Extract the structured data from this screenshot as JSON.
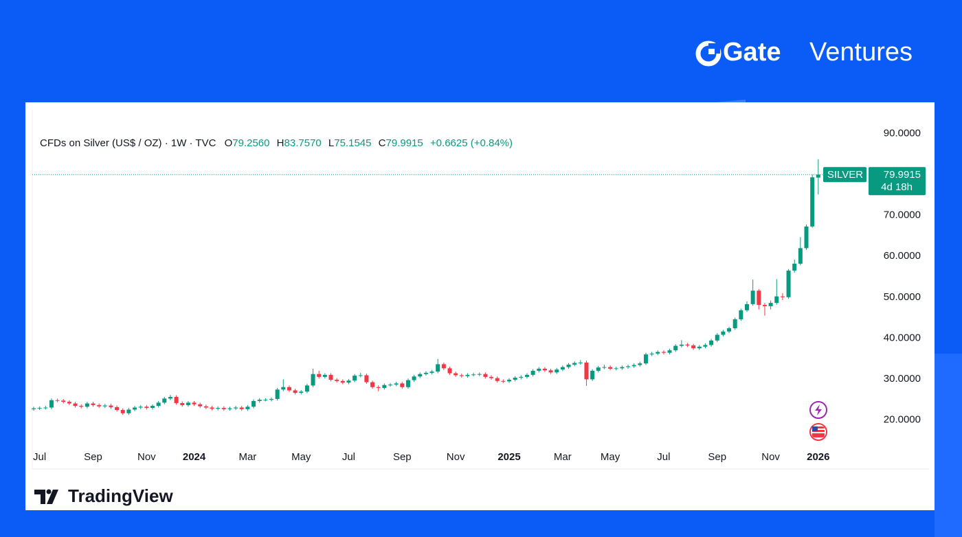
{
  "branding": {
    "logo_bold": "Gate",
    "logo_light": "Ventures",
    "footer": "TradingView"
  },
  "chart_data": {
    "type": "candlestick",
    "header": {
      "symbol": "CFDs on Silver (US$ / OZ) · 1W · TVC",
      "o_key": "O",
      "o": "79.2560",
      "h_key": "H",
      "h": "83.7570",
      "l_key": "L",
      "l": "75.1545",
      "c_key": "C",
      "c": "79.9915",
      "change": "+0.6625 (+0.84%)"
    },
    "symbol_label": "SILVER",
    "countdown": "4d 18h",
    "up_color": "#089981",
    "down_color": "#f23645",
    "categories": [
      null,
      "Jul",
      null,
      null,
      null,
      null,
      null,
      null,
      null,
      null,
      "Sep",
      null,
      null,
      null,
      null,
      null,
      null,
      null,
      null,
      "Nov",
      null,
      null,
      null,
      null,
      null,
      null,
      null,
      "2024",
      null,
      null,
      null,
      null,
      null,
      null,
      null,
      null,
      "Mar",
      null,
      null,
      null,
      null,
      null,
      null,
      null,
      null,
      "May",
      null,
      null,
      null,
      null,
      null,
      null,
      null,
      "Jul",
      null,
      null,
      null,
      null,
      null,
      null,
      null,
      null,
      "Sep",
      null,
      null,
      null,
      null,
      null,
      null,
      null,
      null,
      "Nov",
      null,
      null,
      null,
      null,
      null,
      null,
      null,
      null,
      "2025",
      null,
      null,
      null,
      null,
      null,
      null,
      null,
      null,
      "Mar",
      null,
      null,
      null,
      null,
      null,
      null,
      null,
      "May",
      null,
      null,
      null,
      null,
      null,
      null,
      null,
      null,
      "Jul",
      null,
      null,
      null,
      null,
      null,
      null,
      null,
      null,
      "Sep",
      null,
      null,
      null,
      null,
      null,
      null,
      null,
      null,
      "Nov",
      null,
      null,
      null,
      null,
      null,
      null,
      null,
      "2026"
    ],
    "open": [
      22.6,
      22.8,
      22.9,
      23.0,
      24.8,
      24.7,
      24.4,
      24.0,
      23.4,
      23.2,
      24.0,
      23.6,
      23.3,
      23.5,
      23.1,
      22.4,
      21.6,
      22.5,
      23.0,
      23.2,
      22.9,
      23.4,
      24.2,
      25.2,
      25.6,
      24.1,
      23.6,
      24.2,
      23.8,
      23.3,
      23.0,
      22.7,
      22.9,
      22.6,
      22.8,
      23.0,
      22.6,
      23.2,
      24.6,
      24.9,
      24.9,
      25.1,
      27.4,
      28.0,
      27.2,
      26.6,
      26.9,
      28.4,
      31.2,
      30.5,
      31.0,
      29.8,
      29.5,
      29.1,
      29.6,
      30.8,
      30.9,
      29.2,
      28.0,
      27.8,
      28.5,
      28.6,
      28.9,
      28.0,
      29.7,
      30.6,
      31.2,
      31.5,
      31.8,
      33.6,
      32.6,
      31.4,
      30.9,
      30.7,
      31.0,
      31.1,
      31.2,
      30.5,
      30.2,
      29.5,
      29.4,
      29.8,
      30.3,
      30.5,
      31.0,
      32.0,
      32.5,
      32.1,
      31.6,
      32.3,
      32.9,
      33.5,
      33.9,
      34.0,
      29.9,
      32.0,
      32.8,
      32.9,
      32.5,
      32.6,
      32.9,
      33.1,
      33.4,
      33.8,
      36.0,
      36.2,
      36.6,
      36.4,
      37.0,
      38.1,
      38.4,
      38.2,
      37.5,
      37.9,
      38.3,
      39.4,
      40.8,
      41.6,
      42.4,
      44.6,
      46.8,
      48.3,
      51.6,
      48.1,
      47.8,
      48.6,
      50.2,
      50.0,
      56.5,
      58.2,
      62.0,
      67.3,
      79.256
    ],
    "high": [
      23.2,
      23.3,
      23.4,
      25.2,
      25.2,
      25.1,
      24.8,
      24.4,
      23.8,
      24.4,
      24.4,
      24.0,
      23.9,
      23.9,
      23.5,
      22.8,
      22.9,
      23.4,
      23.6,
      23.6,
      23.8,
      24.6,
      25.6,
      26.1,
      26.0,
      24.5,
      24.6,
      24.6,
      24.2,
      23.7,
      23.4,
      23.3,
      23.3,
      23.2,
      23.4,
      23.4,
      23.6,
      25.0,
      25.3,
      25.3,
      25.5,
      27.8,
      29.9,
      28.4,
      27.6,
      27.3,
      28.8,
      32.5,
      32.0,
      31.4,
      31.4,
      30.2,
      29.9,
      30.0,
      31.2,
      31.5,
      31.3,
      29.6,
      28.4,
      28.9,
      29.0,
      29.3,
      29.3,
      30.1,
      31.0,
      31.6,
      31.9,
      32.2,
      34.9,
      34.0,
      33.0,
      31.8,
      31.3,
      31.4,
      31.5,
      31.6,
      31.6,
      30.9,
      30.6,
      29.9,
      30.2,
      30.7,
      30.9,
      31.4,
      32.4,
      32.9,
      32.9,
      32.5,
      32.7,
      33.3,
      33.9,
      34.3,
      34.6,
      34.5,
      32.4,
      33.2,
      33.5,
      33.3,
      33.0,
      33.3,
      33.5,
      33.8,
      34.2,
      36.4,
      36.6,
      37.0,
      37.0,
      37.4,
      38.5,
      39.5,
      38.8,
      38.6,
      38.3,
      38.7,
      39.8,
      41.2,
      42.0,
      42.8,
      45.0,
      47.2,
      49.0,
      54.3,
      52.0,
      48.6,
      49.2,
      54.4,
      51.0,
      56.9,
      59.2,
      64.7,
      67.8,
      80.0,
      83.757
    ],
    "low": [
      22.2,
      22.4,
      22.5,
      22.6,
      24.3,
      24.0,
      23.6,
      23.0,
      22.8,
      22.8,
      23.2,
      22.9,
      22.9,
      22.7,
      22.0,
      21.2,
      21.2,
      22.1,
      22.6,
      22.5,
      22.5,
      23.0,
      23.8,
      24.8,
      23.7,
      23.2,
      23.2,
      23.4,
      22.9,
      22.6,
      22.3,
      22.3,
      22.2,
      22.2,
      22.4,
      22.2,
      22.2,
      22.8,
      24.2,
      24.5,
      24.5,
      24.7,
      27.0,
      26.8,
      26.2,
      26.2,
      26.5,
      28.0,
      30.1,
      30.1,
      29.4,
      29.1,
      28.7,
      28.7,
      29.2,
      30.4,
      28.8,
      27.6,
      27.0,
      27.4,
      28.1,
      28.2,
      27.6,
      27.6,
      29.3,
      30.2,
      30.8,
      31.1,
      31.4,
      32.2,
      31.0,
      30.5,
      30.3,
      30.3,
      30.6,
      30.7,
      30.1,
      29.8,
      29.1,
      29.0,
      29.0,
      29.4,
      29.9,
      30.1,
      30.6,
      31.6,
      31.7,
      31.2,
      31.2,
      31.9,
      32.5,
      33.1,
      33.5,
      28.3,
      29.5,
      31.6,
      32.4,
      32.1,
      32.1,
      32.2,
      32.5,
      32.7,
      33.0,
      33.4,
      35.6,
      35.8,
      36.0,
      36.0,
      36.6,
      37.7,
      37.8,
      37.1,
      37.1,
      37.5,
      37.9,
      39.0,
      40.4,
      41.2,
      42.0,
      44.2,
      46.4,
      47.9,
      47.0,
      45.5,
      47.0,
      48.2,
      49.3,
      49.6,
      56.0,
      57.8,
      61.6,
      67.0,
      75.1545
    ],
    "close": [
      22.8,
      22.9,
      23.0,
      24.8,
      24.7,
      24.4,
      24.0,
      23.4,
      23.2,
      24.0,
      23.6,
      23.3,
      23.5,
      23.1,
      22.4,
      21.6,
      22.5,
      23.0,
      23.2,
      22.9,
      23.4,
      24.2,
      25.2,
      25.6,
      24.1,
      23.6,
      24.2,
      23.8,
      23.3,
      23.0,
      22.7,
      22.9,
      22.6,
      22.8,
      23.0,
      22.6,
      23.2,
      24.6,
      24.9,
      24.9,
      25.1,
      27.4,
      28.0,
      27.2,
      26.6,
      26.9,
      28.4,
      31.2,
      30.5,
      31.0,
      29.8,
      29.5,
      29.1,
      29.6,
      30.8,
      30.9,
      29.2,
      28.0,
      27.8,
      28.5,
      28.6,
      28.9,
      28.0,
      29.7,
      30.6,
      31.2,
      31.5,
      31.8,
      33.6,
      32.6,
      31.4,
      30.9,
      30.7,
      31.0,
      31.1,
      31.2,
      30.5,
      30.2,
      29.5,
      29.4,
      29.8,
      30.3,
      30.5,
      31.0,
      32.0,
      32.5,
      32.1,
      31.6,
      32.3,
      32.9,
      33.5,
      33.9,
      34.0,
      29.9,
      32.0,
      32.8,
      32.9,
      32.5,
      32.6,
      32.9,
      33.1,
      33.4,
      33.8,
      36.0,
      36.2,
      36.6,
      36.4,
      37.0,
      38.1,
      38.4,
      38.2,
      37.5,
      37.9,
      38.3,
      39.4,
      40.8,
      41.6,
      42.4,
      44.6,
      46.8,
      48.3,
      51.6,
      48.1,
      47.8,
      48.6,
      50.2,
      50.0,
      56.5,
      58.2,
      62.0,
      67.3,
      79.329,
      79.9915
    ],
    "ylim": [
      13,
      96
    ],
    "yticks": [
      {
        "value": 20,
        "label": "20.0000"
      },
      {
        "value": 30,
        "label": "30.0000"
      },
      {
        "value": 40,
        "label": "40.0000"
      },
      {
        "value": 50,
        "label": "50.0000"
      },
      {
        "value": 60,
        "label": "60.0000"
      },
      {
        "value": 70,
        "label": "70.0000"
      },
      {
        "value": 90,
        "label": "90.0000"
      }
    ]
  }
}
